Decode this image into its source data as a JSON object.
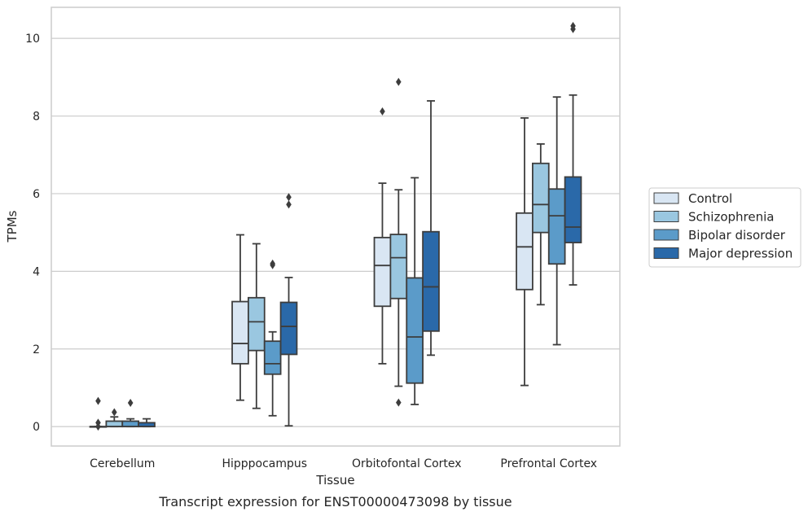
{
  "caption": "Transcript expression for ENST00000473098 by tissue",
  "chart_data": {
    "type": "box",
    "xlabel": "Tissue",
    "ylabel": "TPMs",
    "ylim": [
      -0.5,
      10.8
    ],
    "yticks": [
      0,
      2,
      4,
      6,
      8,
      10
    ],
    "grid": "horizontal",
    "legend_position": "right",
    "categories": [
      "Cerebellum",
      "Hipppocampus",
      "Orbitofontal Cortex",
      "Prefrontal Cortex"
    ],
    "series": [
      {
        "name": "Control",
        "color": "#d9e6f3",
        "boxes": [
          {
            "whislo": 0.0,
            "q1": 0.0,
            "med": 0.0,
            "q3": 0.0,
            "whishi": 0.0,
            "fliers": [
              0.66,
              0.1,
              0.0
            ]
          },
          {
            "whislo": 0.68,
            "q1": 1.62,
            "med": 2.14,
            "q3": 3.22,
            "whishi": 4.94,
            "fliers": []
          },
          {
            "whislo": 1.62,
            "q1": 3.1,
            "med": 4.15,
            "q3": 4.87,
            "whishi": 6.27,
            "fliers": [
              8.12
            ]
          },
          {
            "whislo": 1.06,
            "q1": 3.53,
            "med": 4.63,
            "q3": 5.5,
            "whishi": 7.95,
            "fliers": []
          }
        ]
      },
      {
        "name": "Schizophrenia",
        "color": "#9ac7e0",
        "boxes": [
          {
            "whislo": 0.0,
            "q1": 0.0,
            "med": 0.0,
            "q3": 0.14,
            "whishi": 0.25,
            "fliers": [
              0.37
            ]
          },
          {
            "whislo": 0.47,
            "q1": 1.96,
            "med": 2.7,
            "q3": 3.32,
            "whishi": 4.71,
            "fliers": []
          },
          {
            "whislo": 1.04,
            "q1": 3.3,
            "med": 4.35,
            "q3": 4.95,
            "whishi": 6.1,
            "fliers": [
              8.88,
              0.62
            ]
          },
          {
            "whislo": 3.14,
            "q1": 5.0,
            "med": 5.72,
            "q3": 6.78,
            "whishi": 7.28,
            "fliers": []
          }
        ]
      },
      {
        "name": "Bipolar disorder",
        "color": "#5b9bc9",
        "boxes": [
          {
            "whislo": 0.0,
            "q1": 0.0,
            "med": 0.0,
            "q3": 0.14,
            "whishi": 0.2,
            "fliers": [
              0.61
            ]
          },
          {
            "whislo": 0.28,
            "q1": 1.35,
            "med": 1.62,
            "q3": 2.2,
            "whishi": 2.44,
            "fliers": [
              4.2,
              4.16
            ]
          },
          {
            "whislo": 0.57,
            "q1": 1.12,
            "med": 2.31,
            "q3": 3.83,
            "whishi": 6.41,
            "fliers": []
          },
          {
            "whislo": 2.11,
            "q1": 4.19,
            "med": 5.43,
            "q3": 6.12,
            "whishi": 8.49,
            "fliers": []
          }
        ]
      },
      {
        "name": "Major depression",
        "color": "#2a69a9",
        "boxes": [
          {
            "whislo": 0.0,
            "q1": 0.0,
            "med": 0.0,
            "q3": 0.1,
            "whishi": 0.2,
            "fliers": []
          },
          {
            "whislo": 0.02,
            "q1": 1.86,
            "med": 2.58,
            "q3": 3.2,
            "whishi": 3.84,
            "fliers": [
              5.91,
              5.72
            ]
          },
          {
            "whislo": 1.84,
            "q1": 2.46,
            "med": 3.6,
            "q3": 5.02,
            "whishi": 8.39,
            "fliers": []
          },
          {
            "whislo": 3.65,
            "q1": 4.74,
            "med": 5.14,
            "q3": 6.43,
            "whishi": 8.54,
            "fliers": [
              10.32,
              10.24
            ]
          }
        ]
      }
    ]
  }
}
